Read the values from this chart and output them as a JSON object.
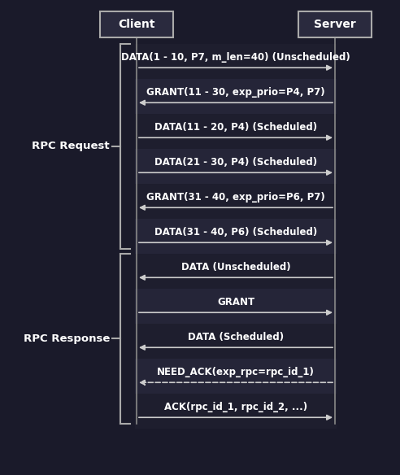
{
  "bg_color": "#1a1a2a",
  "row_bg_dark": "#1e1e30",
  "row_bg_light": "#252535",
  "text_color": "#ffffff",
  "arrow_color": "#cccccc",
  "lifeline_color": "#888888",
  "box_facecolor": "#2a2a3e",
  "box_edgecolor": "#aaaaaa",
  "brace_color": "#aaaaaa",
  "client_label": "Client",
  "server_label": "Server",
  "font_size_msg": 8.5,
  "font_size_header": 10,
  "font_size_brace": 9.5,
  "messages": [
    {
      "label": "DATA(1 - 10, P7, m_len=40) (Unscheduled)",
      "direction": "right",
      "dashed": false
    },
    {
      "label": "GRANT(11 - 30, exp_prio=P4, P7)",
      "direction": "left",
      "dashed": false
    },
    {
      "label": "DATA(11 - 20, P4) (Scheduled)",
      "direction": "right",
      "dashed": false
    },
    {
      "label": "DATA(21 - 30, P4) (Scheduled)",
      "direction": "right",
      "dashed": false
    },
    {
      "label": "GRANT(31 - 40, exp_prio=P6, P7)",
      "direction": "left",
      "dashed": false
    },
    {
      "label": "DATA(31 - 40, P6) (Scheduled)",
      "direction": "right",
      "dashed": false
    },
    {
      "label": "DATA (Unscheduled)",
      "direction": "left",
      "dashed": false
    },
    {
      "label": "GRANT",
      "direction": "right",
      "dashed": false
    },
    {
      "label": "DATA (Scheduled)",
      "direction": "left",
      "dashed": false
    },
    {
      "label": "NEED_ACK(exp_rpc=rpc_id_1)",
      "direction": "left",
      "dashed": true
    },
    {
      "label": "ACK(rpc_id_1, rpc_id_2, ...)",
      "direction": "right",
      "dashed": false
    }
  ],
  "rpc_request_rows": [
    0,
    5
  ],
  "rpc_response_rows": [
    6,
    10
  ],
  "rpc_request_label": "RPC Request",
  "rpc_response_label": "RPC Response"
}
